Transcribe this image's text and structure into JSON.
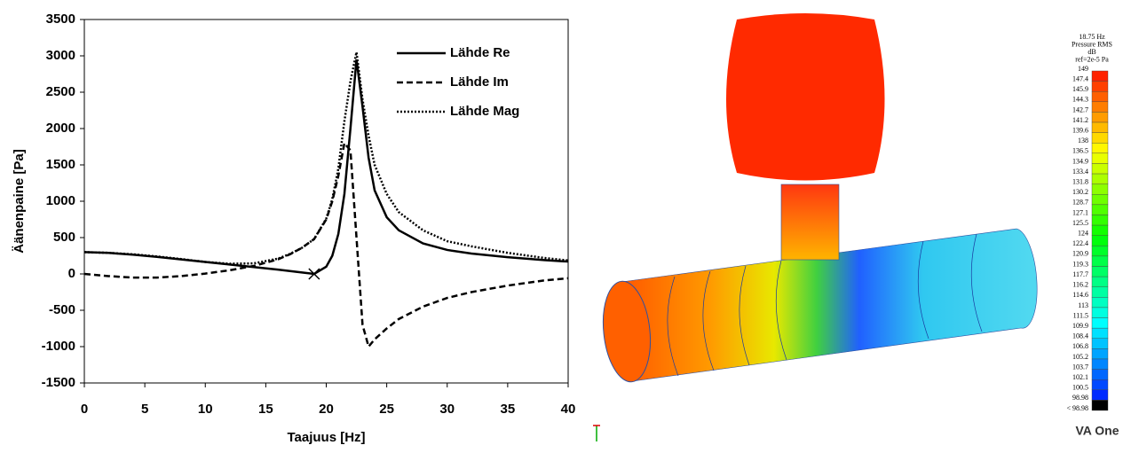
{
  "chart_data": {
    "type": "line",
    "x_label": "Taajuus [Hz]",
    "y_label": "Äänenpaine  [Pa]",
    "x": [
      0,
      2,
      4,
      6,
      8,
      10,
      12,
      14,
      16,
      17,
      18,
      19,
      20,
      20.5,
      21,
      21.5,
      22,
      22.5,
      23,
      23.5,
      24,
      25,
      26,
      28,
      30,
      32,
      35,
      38,
      40
    ],
    "series": [
      {
        "name": "Lähde Re",
        "color": "#000000",
        "dash": "solid",
        "values": [
          300,
          290,
          265,
          235,
          200,
          165,
          130,
          95,
          60,
          40,
          20,
          0,
          100,
          250,
          550,
          1100,
          2000,
          2950,
          2300,
          1600,
          1150,
          780,
          600,
          420,
          330,
          280,
          230,
          190,
          170
        ]
      },
      {
        "name": "Lähde Im",
        "color": "#000000",
        "dash": "dashed",
        "values": [
          0,
          -30,
          -50,
          -50,
          -30,
          5,
          50,
          110,
          200,
          270,
          360,
          480,
          750,
          1000,
          1350,
          1800,
          1700,
          500,
          -700,
          -1000,
          -900,
          -750,
          -620,
          -450,
          -330,
          -250,
          -160,
          -90,
          -60
        ]
      },
      {
        "name": "Lähde Mag",
        "color": "#000000",
        "dash": "dotted",
        "values": [
          300,
          290,
          270,
          240,
          205,
          165,
          140,
          145,
          210,
          275,
          360,
          480,
          760,
          1030,
          1450,
          2100,
          2650,
          3050,
          2400,
          1900,
          1500,
          1100,
          850,
          600,
          450,
          380,
          290,
          220,
          185
        ]
      }
    ],
    "marker": {
      "x": 19,
      "y": 0
    },
    "xlim": [
      0,
      40
    ],
    "xticks": [
      0,
      5,
      10,
      15,
      20,
      25,
      30,
      35,
      40
    ],
    "ylim": [
      -1500,
      3500
    ],
    "yticks": [
      -1500,
      -1000,
      -500,
      0,
      500,
      1000,
      1500,
      2000,
      2500,
      3000,
      3500
    ],
    "legend": "upper-right"
  },
  "colorbar": {
    "header": [
      "18.75 Hz",
      "Pressure RMS",
      "dB",
      "ref=2e-5 Pa"
    ],
    "labels": [
      "149",
      "147.4",
      "145.9",
      "144.3",
      "142.7",
      "141.2",
      "139.6",
      "138",
      "136.5",
      "134.9",
      "133.4",
      "131.8",
      "130.2",
      "128.7",
      "127.1",
      "125.5",
      "124",
      "122.4",
      "120.9",
      "119.3",
      "117.7",
      "116.2",
      "114.6",
      "113",
      "111.5",
      "109.9",
      "108.4",
      "106.8",
      "105.2",
      "103.7",
      "102.1",
      "100.5",
      "98.98",
      "< 98.98"
    ]
  },
  "logo": "VA One"
}
